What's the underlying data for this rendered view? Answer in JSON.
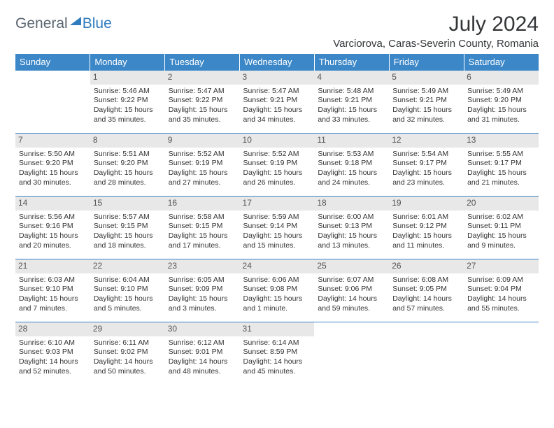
{
  "logo": {
    "text1": "General",
    "text2": "Blue"
  },
  "title": "July 2024",
  "location": "Varciorova, Caras-Severin County, Romania",
  "colors": {
    "header_bg": "#3c87c7",
    "header_fg": "#ffffff",
    "daynum_bg": "#e8e8e8",
    "border": "#3c87c7",
    "text": "#333333",
    "logo_gray": "#5a6570",
    "logo_blue": "#2f7bbf"
  },
  "weekdays": [
    "Sunday",
    "Monday",
    "Tuesday",
    "Wednesday",
    "Thursday",
    "Friday",
    "Saturday"
  ],
  "weeks": [
    [
      {
        "empty": true
      },
      {
        "day": "1",
        "sunrise": "Sunrise: 5:46 AM",
        "sunset": "Sunset: 9:22 PM",
        "daylight": "Daylight: 15 hours and 35 minutes."
      },
      {
        "day": "2",
        "sunrise": "Sunrise: 5:47 AM",
        "sunset": "Sunset: 9:22 PM",
        "daylight": "Daylight: 15 hours and 35 minutes."
      },
      {
        "day": "3",
        "sunrise": "Sunrise: 5:47 AM",
        "sunset": "Sunset: 9:21 PM",
        "daylight": "Daylight: 15 hours and 34 minutes."
      },
      {
        "day": "4",
        "sunrise": "Sunrise: 5:48 AM",
        "sunset": "Sunset: 9:21 PM",
        "daylight": "Daylight: 15 hours and 33 minutes."
      },
      {
        "day": "5",
        "sunrise": "Sunrise: 5:49 AM",
        "sunset": "Sunset: 9:21 PM",
        "daylight": "Daylight: 15 hours and 32 minutes."
      },
      {
        "day": "6",
        "sunrise": "Sunrise: 5:49 AM",
        "sunset": "Sunset: 9:20 PM",
        "daylight": "Daylight: 15 hours and 31 minutes."
      }
    ],
    [
      {
        "day": "7",
        "sunrise": "Sunrise: 5:50 AM",
        "sunset": "Sunset: 9:20 PM",
        "daylight": "Daylight: 15 hours and 30 minutes."
      },
      {
        "day": "8",
        "sunrise": "Sunrise: 5:51 AM",
        "sunset": "Sunset: 9:20 PM",
        "daylight": "Daylight: 15 hours and 28 minutes."
      },
      {
        "day": "9",
        "sunrise": "Sunrise: 5:52 AM",
        "sunset": "Sunset: 9:19 PM",
        "daylight": "Daylight: 15 hours and 27 minutes."
      },
      {
        "day": "10",
        "sunrise": "Sunrise: 5:52 AM",
        "sunset": "Sunset: 9:19 PM",
        "daylight": "Daylight: 15 hours and 26 minutes."
      },
      {
        "day": "11",
        "sunrise": "Sunrise: 5:53 AM",
        "sunset": "Sunset: 9:18 PM",
        "daylight": "Daylight: 15 hours and 24 minutes."
      },
      {
        "day": "12",
        "sunrise": "Sunrise: 5:54 AM",
        "sunset": "Sunset: 9:17 PM",
        "daylight": "Daylight: 15 hours and 23 minutes."
      },
      {
        "day": "13",
        "sunrise": "Sunrise: 5:55 AM",
        "sunset": "Sunset: 9:17 PM",
        "daylight": "Daylight: 15 hours and 21 minutes."
      }
    ],
    [
      {
        "day": "14",
        "sunrise": "Sunrise: 5:56 AM",
        "sunset": "Sunset: 9:16 PM",
        "daylight": "Daylight: 15 hours and 20 minutes."
      },
      {
        "day": "15",
        "sunrise": "Sunrise: 5:57 AM",
        "sunset": "Sunset: 9:15 PM",
        "daylight": "Daylight: 15 hours and 18 minutes."
      },
      {
        "day": "16",
        "sunrise": "Sunrise: 5:58 AM",
        "sunset": "Sunset: 9:15 PM",
        "daylight": "Daylight: 15 hours and 17 minutes."
      },
      {
        "day": "17",
        "sunrise": "Sunrise: 5:59 AM",
        "sunset": "Sunset: 9:14 PM",
        "daylight": "Daylight: 15 hours and 15 minutes."
      },
      {
        "day": "18",
        "sunrise": "Sunrise: 6:00 AM",
        "sunset": "Sunset: 9:13 PM",
        "daylight": "Daylight: 15 hours and 13 minutes."
      },
      {
        "day": "19",
        "sunrise": "Sunrise: 6:01 AM",
        "sunset": "Sunset: 9:12 PM",
        "daylight": "Daylight: 15 hours and 11 minutes."
      },
      {
        "day": "20",
        "sunrise": "Sunrise: 6:02 AM",
        "sunset": "Sunset: 9:11 PM",
        "daylight": "Daylight: 15 hours and 9 minutes."
      }
    ],
    [
      {
        "day": "21",
        "sunrise": "Sunrise: 6:03 AM",
        "sunset": "Sunset: 9:10 PM",
        "daylight": "Daylight: 15 hours and 7 minutes."
      },
      {
        "day": "22",
        "sunrise": "Sunrise: 6:04 AM",
        "sunset": "Sunset: 9:10 PM",
        "daylight": "Daylight: 15 hours and 5 minutes."
      },
      {
        "day": "23",
        "sunrise": "Sunrise: 6:05 AM",
        "sunset": "Sunset: 9:09 PM",
        "daylight": "Daylight: 15 hours and 3 minutes."
      },
      {
        "day": "24",
        "sunrise": "Sunrise: 6:06 AM",
        "sunset": "Sunset: 9:08 PM",
        "daylight": "Daylight: 15 hours and 1 minute."
      },
      {
        "day": "25",
        "sunrise": "Sunrise: 6:07 AM",
        "sunset": "Sunset: 9:06 PM",
        "daylight": "Daylight: 14 hours and 59 minutes."
      },
      {
        "day": "26",
        "sunrise": "Sunrise: 6:08 AM",
        "sunset": "Sunset: 9:05 PM",
        "daylight": "Daylight: 14 hours and 57 minutes."
      },
      {
        "day": "27",
        "sunrise": "Sunrise: 6:09 AM",
        "sunset": "Sunset: 9:04 PM",
        "daylight": "Daylight: 14 hours and 55 minutes."
      }
    ],
    [
      {
        "day": "28",
        "sunrise": "Sunrise: 6:10 AM",
        "sunset": "Sunset: 9:03 PM",
        "daylight": "Daylight: 14 hours and 52 minutes."
      },
      {
        "day": "29",
        "sunrise": "Sunrise: 6:11 AM",
        "sunset": "Sunset: 9:02 PM",
        "daylight": "Daylight: 14 hours and 50 minutes."
      },
      {
        "day": "30",
        "sunrise": "Sunrise: 6:12 AM",
        "sunset": "Sunset: 9:01 PM",
        "daylight": "Daylight: 14 hours and 48 minutes."
      },
      {
        "day": "31",
        "sunrise": "Sunrise: 6:14 AM",
        "sunset": "Sunset: 8:59 PM",
        "daylight": "Daylight: 14 hours and 45 minutes."
      },
      {
        "empty": true
      },
      {
        "empty": true
      },
      {
        "empty": true
      }
    ]
  ]
}
